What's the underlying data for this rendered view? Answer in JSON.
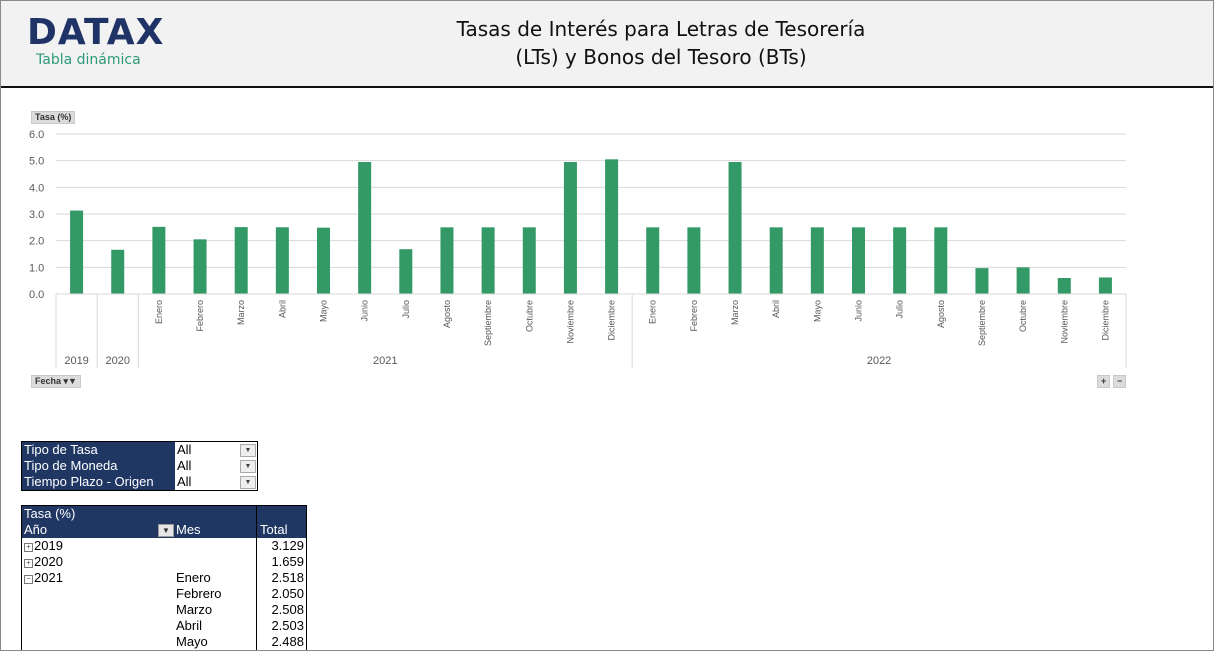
{
  "header": {
    "logo": "DATAX",
    "logo_sub": "Tabla dinámica",
    "title_line1": "Tasas de Interés para Letras de Tesorería",
    "title_line2": "(LTs) y Bonos del Tesoro (BTs)"
  },
  "chart_controls": {
    "value_button": "Tasa (%)",
    "axis_button": "Fecha",
    "zoom_in": "+",
    "zoom_out": "−"
  },
  "chart_data": {
    "type": "bar",
    "ylabel": "Tasa (%)",
    "xlabel": "Fecha",
    "ylim": [
      0,
      6
    ],
    "yticks": [
      "0.0",
      "1.0",
      "2.0",
      "3.0",
      "4.0",
      "5.0",
      "6.0"
    ],
    "grid": true,
    "color": "#339966",
    "groups": [
      {
        "year": "2019",
        "categories": [
          ""
        ],
        "values": [
          3.129
        ]
      },
      {
        "year": "2020",
        "categories": [
          ""
        ],
        "values": [
          1.659
        ]
      },
      {
        "year": "2021",
        "categories": [
          "Enero",
          "Febrero",
          "Marzo",
          "Abril",
          "Mayo",
          "Junio",
          "Julio",
          "Agosto",
          "Septiembre",
          "Octubre",
          "Noviembre",
          "Diciembre"
        ],
        "values": [
          2.518,
          2.05,
          2.508,
          2.503,
          2.488,
          4.95,
          1.68,
          2.5,
          2.5,
          2.5,
          4.95,
          5.05
        ]
      },
      {
        "year": "2022",
        "categories": [
          "Enero",
          "Febrero",
          "Marzo",
          "Abril",
          "Mayo",
          "Junio",
          "Julio",
          "Agosto",
          "Septiembre",
          "Octubre",
          "Noviembre",
          "Diciembre"
        ],
        "values": [
          2.5,
          2.5,
          4.95,
          2.5,
          2.5,
          2.5,
          2.5,
          2.5,
          0.97,
          1.0,
          0.6,
          0.62
        ]
      }
    ]
  },
  "filters": [
    {
      "label": "Tipo de Tasa",
      "value": "All"
    },
    {
      "label": "Tipo de Moneda",
      "value": "All"
    },
    {
      "label": "Tiempo Plazo - Origen",
      "value": "All"
    }
  ],
  "pivot": {
    "value_header": "Tasa (%)",
    "row_header": "Año",
    "col_header": "Mes",
    "total_header": "Total",
    "rows": [
      {
        "year": "2019",
        "expand": "+",
        "month": "",
        "total": "3.129"
      },
      {
        "year": "2020",
        "expand": "+",
        "month": "",
        "total": "1.659"
      },
      {
        "year": "2021",
        "expand": "−",
        "month": "Enero",
        "total": "2.518"
      },
      {
        "year": "",
        "expand": "",
        "month": "Febrero",
        "total": "2.050"
      },
      {
        "year": "",
        "expand": "",
        "month": "Marzo",
        "total": "2.508"
      },
      {
        "year": "",
        "expand": "",
        "month": "Abril",
        "total": "2.503"
      },
      {
        "year": "",
        "expand": "",
        "month": "Mayo",
        "total": "2.488"
      }
    ]
  }
}
